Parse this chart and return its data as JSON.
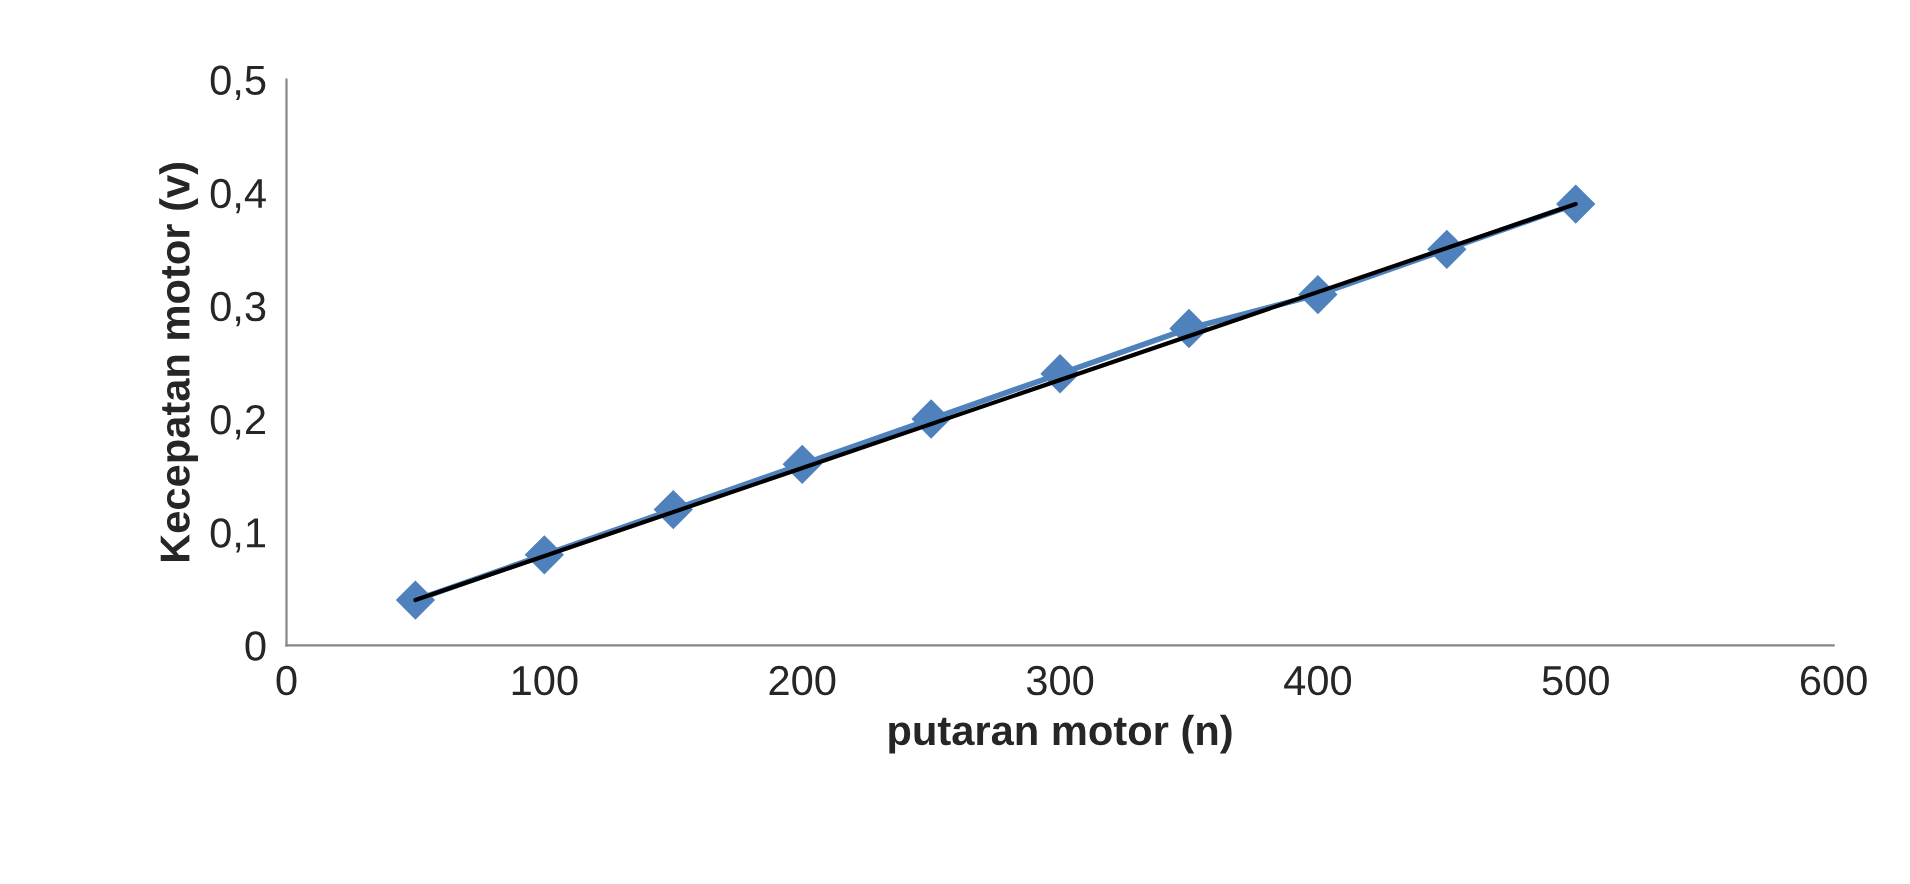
{
  "chart_data": {
    "type": "line",
    "xlabel": "putaran motor (n)",
    "ylabel": "Kecepatan motor (v)",
    "x": [
      50,
      100,
      150,
      200,
      250,
      300,
      350,
      400,
      450,
      500
    ],
    "series": [
      {
        "color": "#4f81bd",
        "marker": "diamond",
        "values": [
          0.04,
          0.08,
          0.12,
          0.16,
          0.2,
          0.24,
          0.28,
          0.31,
          0.35,
          0.39
        ]
      },
      {
        "color": "#000000",
        "marker": "none",
        "x": [
          50,
          500
        ],
        "values": [
          0.04,
          0.39
        ]
      }
    ],
    "xlim": [
      0,
      600
    ],
    "xticks": [
      0,
      100,
      200,
      300,
      400,
      500,
      600
    ],
    "ylim": [
      0,
      0.5
    ],
    "yticks": [
      0,
      {
        "value": 0.1,
        "label": "0,1"
      },
      {
        "value": 0.2,
        "label": "0,2"
      },
      {
        "value": 0.3,
        "label": "0,3"
      },
      {
        "value": 0.4,
        "label": "0,4"
      },
      {
        "value": 0.5,
        "label": "0,5"
      }
    ],
    "grid": false,
    "legend": false,
    "line_style": "solid"
  }
}
